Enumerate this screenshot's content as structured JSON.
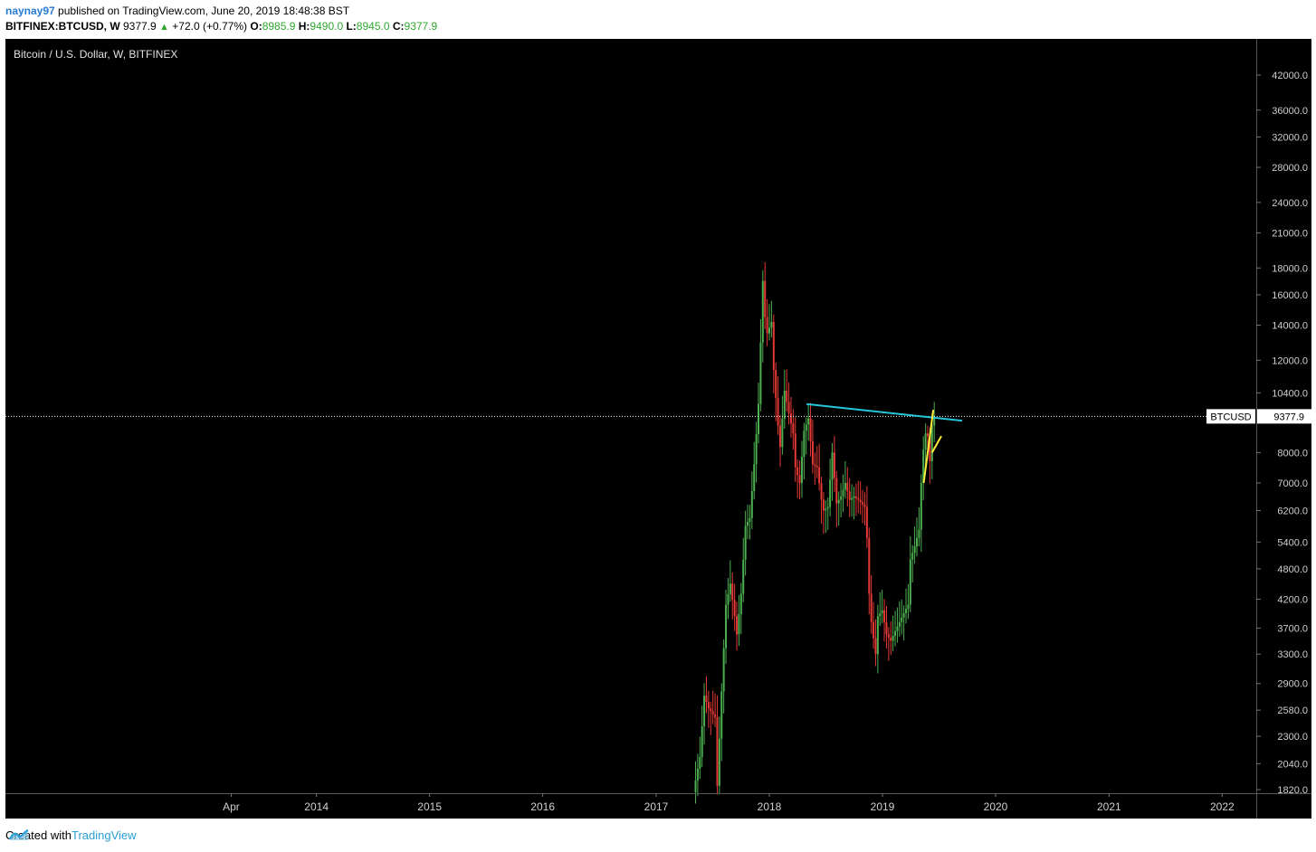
{
  "header": {
    "user": "naynay97",
    "published_text": "published on TradingView.com, June 20, 2019 18:48:38 BST",
    "symbol": "BITFINEX:BTCUSD, W",
    "last": "9377.9",
    "change": "+72.0 (+0.77%)",
    "o_label": "O:",
    "o_value": "8985.9",
    "h_label": "H:",
    "h_value": "9490.0",
    "l_label": "L:",
    "l_value": "8945.0",
    "c_label": "C:",
    "c_value": "9377.9"
  },
  "footer": {
    "created_with": "Created with",
    "brand": "TradingView"
  },
  "colors": {
    "up": "#4caf50",
    "down": "#e53935",
    "trendline": "#26c6da",
    "channel": "#ffeb3b",
    "background": "#000000"
  },
  "chart_data": {
    "type": "candlestick",
    "title": "Bitcoin / U.S. Dollar, W, BITFINEX",
    "price_scale": "log",
    "y_ticks": [
      1820,
      2040,
      2300,
      2580,
      2900,
      3300,
      3700,
      4200,
      4800,
      5400,
      6200,
      7000,
      8000,
      10400,
      12000,
      14000,
      16000,
      18000,
      21000,
      24000,
      28000,
      32000,
      36000,
      42000
    ],
    "x_ticks": [
      "Apr",
      "2014",
      "2015",
      "2016",
      "2017",
      "2018",
      "2019",
      "2020",
      "2021",
      "2022"
    ],
    "last_price": {
      "label": "BTCUSD",
      "value": "9377.9",
      "price": 9377.9
    },
    "approx_close_path": [
      [
        "2017-05-01",
        1800
      ],
      [
        "2017-05-22",
        2100
      ],
      [
        "2017-06-05",
        2750
      ],
      [
        "2017-06-19",
        2600
      ],
      [
        "2017-07-10",
        2500
      ],
      [
        "2017-07-17",
        1850
      ],
      [
        "2017-07-31",
        2800
      ],
      [
        "2017-08-14",
        4100
      ],
      [
        "2017-08-28",
        4500
      ],
      [
        "2017-09-11",
        3900
      ],
      [
        "2017-09-18",
        3600
      ],
      [
        "2017-10-02",
        4300
      ],
      [
        "2017-10-16",
        5800
      ],
      [
        "2017-10-30",
        6000
      ],
      [
        "2017-11-13",
        7600
      ],
      [
        "2017-11-27",
        9900
      ],
      [
        "2017-12-11",
        17000
      ],
      [
        "2017-12-18",
        14500
      ],
      [
        "2017-12-25",
        13500
      ],
      [
        "2018-01-08",
        14200
      ],
      [
        "2018-01-15",
        11500
      ],
      [
        "2018-01-29",
        9000
      ],
      [
        "2018-02-05",
        8200
      ],
      [
        "2018-02-19",
        10500
      ],
      [
        "2018-03-05",
        9500
      ],
      [
        "2018-03-19",
        8700
      ],
      [
        "2018-03-26",
        7500
      ],
      [
        "2018-04-09",
        7000
      ],
      [
        "2018-04-23",
        8800
      ],
      [
        "2018-05-07",
        9300
      ],
      [
        "2018-05-21",
        7600
      ],
      [
        "2018-06-04",
        7500
      ],
      [
        "2018-06-18",
        6500
      ],
      [
        "2018-06-25",
        6200
      ],
      [
        "2018-07-09",
        6300
      ],
      [
        "2018-07-23",
        8000
      ],
      [
        "2018-08-06",
        6400
      ],
      [
        "2018-08-20",
        6600
      ],
      [
        "2018-09-03",
        7000
      ],
      [
        "2018-09-17",
        6500
      ],
      [
        "2018-10-01",
        6600
      ],
      [
        "2018-10-15",
        6500
      ],
      [
        "2018-11-05",
        6300
      ],
      [
        "2018-11-12",
        5500
      ],
      [
        "2018-11-19",
        4300
      ],
      [
        "2018-11-26",
        3800
      ],
      [
        "2018-12-10",
        3300
      ],
      [
        "2018-12-17",
        3900
      ],
      [
        "2018-12-31",
        4000
      ],
      [
        "2019-01-14",
        3600
      ],
      [
        "2019-01-28",
        3500
      ],
      [
        "2019-02-11",
        3650
      ],
      [
        "2019-02-25",
        3800
      ],
      [
        "2019-03-11",
        3950
      ],
      [
        "2019-03-25",
        4100
      ],
      [
        "2019-04-01",
        5000
      ],
      [
        "2019-04-15",
        5300
      ],
      [
        "2019-04-29",
        5700
      ],
      [
        "2019-05-06",
        7000
      ],
      [
        "2019-05-13",
        8100
      ],
      [
        "2019-05-20",
        8700
      ],
      [
        "2019-05-27",
        8600
      ],
      [
        "2019-06-03",
        7700
      ],
      [
        "2019-06-10",
        9000
      ],
      [
        "2019-06-17",
        9377.9
      ]
    ],
    "drawings": [
      {
        "type": "trendline",
        "color": "#26c6da",
        "from": [
          "2018-05-01",
          9900
        ],
        "to": [
          "2019-09-15",
          9200
        ]
      },
      {
        "type": "trendline",
        "color": "#ffeb3b",
        "from": [
          "2019-05-14",
          7000
        ],
        "to": [
          "2019-06-14",
          9650
        ]
      },
      {
        "type": "trendline",
        "color": "#ffeb3b",
        "from": [
          "2019-06-10",
          8000
        ],
        "to": [
          "2019-07-10",
          8600
        ]
      }
    ]
  }
}
